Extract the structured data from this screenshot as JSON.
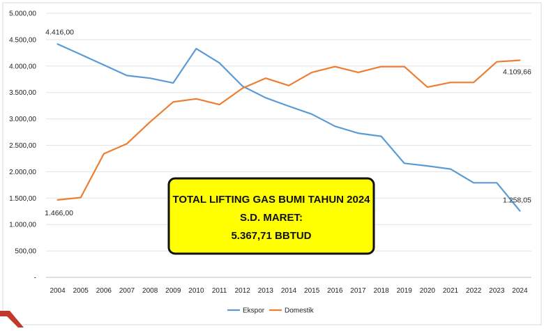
{
  "chart_data": {
    "type": "line",
    "title": "",
    "xlabel": "",
    "ylabel": "",
    "x": [
      "2004",
      "2005",
      "2006",
      "2007",
      "2008",
      "2009",
      "2010",
      "2011",
      "2012",
      "2013",
      "2014",
      "2015",
      "2016",
      "2017",
      "2018",
      "2019",
      "2020",
      "2021",
      "2022",
      "2023",
      "2024"
    ],
    "ylim": [
      0,
      5000
    ],
    "y_ticks": [
      "-",
      "500,00",
      "1.000,00",
      "1.500,00",
      "2.000,00",
      "2.500,00",
      "3.000,00",
      "3.500,00",
      "4.000,00",
      "4.500,00",
      "5.000,00"
    ],
    "grid": true,
    "legend_position": "bottom",
    "series": [
      {
        "name": "Ekspor",
        "color": "#5b9bd5",
        "values": [
          4416,
          4220,
          4020,
          3820,
          3770,
          3680,
          4330,
          4060,
          3620,
          3400,
          3240,
          3090,
          2860,
          2730,
          2670,
          2160,
          2110,
          2050,
          1790,
          1790,
          1258.05
        ]
      },
      {
        "name": "Domestik",
        "color": "#ed7d31",
        "values": [
          1466,
          1510,
          2340,
          2530,
          2940,
          3320,
          3380,
          3270,
          3580,
          3770,
          3630,
          3880,
          3990,
          3880,
          3990,
          3990,
          3600,
          3690,
          3690,
          4080,
          4109.66
        ]
      }
    ],
    "data_labels": [
      {
        "text": "4.416,00",
        "series": 0,
        "index": 0
      },
      {
        "text": "1.466,00",
        "series": 1,
        "index": 0
      },
      {
        "text": "1.258,05",
        "series": 0,
        "index": 20
      },
      {
        "text": "4.109,66",
        "series": 1,
        "index": 20
      }
    ],
    "annotation": {
      "lines": [
        "TOTAL LIFTING GAS BUMI TAHUN 2024",
        "S.D. MARET:",
        "5.367,71 BBTUD"
      ],
      "background": "#ffff00"
    }
  }
}
